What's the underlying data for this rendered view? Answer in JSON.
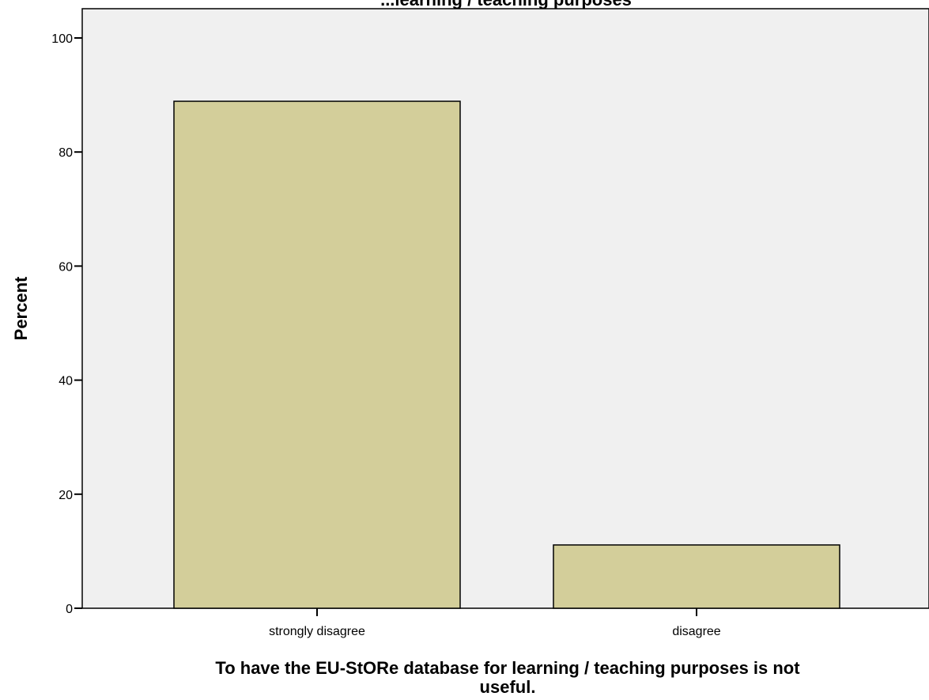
{
  "chart_data": {
    "type": "bar",
    "title": "...learning / teaching purposes",
    "xlabel": "To have the EU-StORe database for learning / teaching purposes is not useful.",
    "xlabel_lines": [
      "To have the EU-StORe database for learning / teaching purposes is not",
      "useful."
    ],
    "ylabel": "Percent",
    "categories": [
      "strongly disagree",
      "disagree"
    ],
    "values": [
      88.9,
      11.1
    ],
    "ylim": [
      0,
      100
    ],
    "yticks": [
      0,
      20,
      40,
      60,
      80,
      100
    ],
    "grid": false,
    "legend": "none",
    "colors": {
      "plot_background": "#f0f0f0",
      "bar_fill": "#d3ce9a",
      "bar_stroke": "#000000"
    }
  }
}
